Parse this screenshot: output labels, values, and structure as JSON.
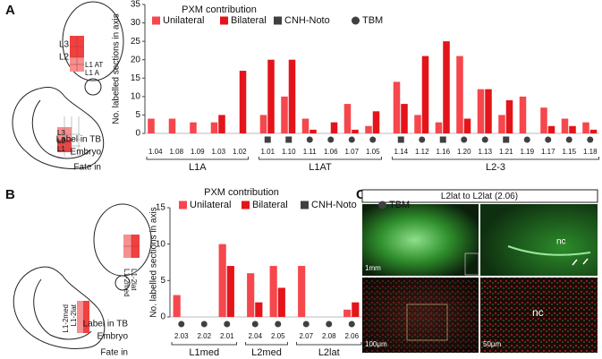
{
  "panels": {
    "a": "A",
    "b": "B",
    "c": "C"
  },
  "diagram_a": {
    "upper_labels": [
      "L3",
      "L2",
      "L1 AT",
      "L1 A"
    ],
    "lower_labels": [
      "L3",
      "L2",
      "L1"
    ]
  },
  "diagram_b": {
    "upper_labels": [
      "L1-2lat",
      "L1-2med"
    ],
    "lower_labels": [
      "L1-2lat",
      "L1-2med"
    ]
  },
  "panel_c": {
    "title": "L2lat to L2lat (2.06)",
    "scale_bars": [
      "1mm",
      "100μm",
      "50μm"
    ],
    "nc_labels": [
      "nc",
      "nc"
    ]
  },
  "chart_data": [
    {
      "type": "bar",
      "legend_title": "PXM contribution",
      "y_label": "No. labelled sections in axis",
      "row_labels": {
        "label_in_tb": "Label in TB",
        "embryo": "Embryo",
        "fate": "Fate in"
      },
      "categories": [
        "1.04",
        "1.08",
        "1.09",
        "1.03",
        "1.02",
        "1.01",
        "1.10",
        "1.11",
        "1.06",
        "1.07",
        "1.05",
        "1.14",
        "1.12",
        "1.16",
        "1.20",
        "1.13",
        "1.21",
        "1.19",
        "1.17",
        "1.15",
        "1.18"
      ],
      "fate": [
        "L1A",
        "L1A",
        "L1A",
        "L1A",
        "L1A",
        "L1AT",
        "L1AT",
        "L1AT",
        "L1AT",
        "L1AT",
        "L1AT",
        "L2-3",
        "L2-3",
        "L2-3",
        "L2-3",
        "L2-3",
        "L2-3",
        "L2-3",
        "L2-3",
        "L2-3",
        "L2-3"
      ],
      "label_in_tb": [
        null,
        null,
        null,
        null,
        null,
        "CNH-Noto",
        "CNH-Noto",
        "TBM",
        "TBM",
        "TBM",
        "TBM",
        "CNH-Noto",
        "TBM",
        "CNH-Noto",
        "TBM",
        "TBM",
        "CNH-Noto",
        "TBM",
        "TBM",
        "TBM",
        "TBM"
      ],
      "markers": [
        {
          "name": "CNH-Noto",
          "shape": "square",
          "color": "#404040"
        },
        {
          "name": "TBM",
          "shape": "circle",
          "color": "#404040"
        }
      ],
      "series": [
        {
          "name": "Unilateral",
          "color": "#f5474c",
          "values": [
            4,
            4,
            3,
            3,
            0,
            5,
            10,
            4,
            0,
            8,
            2,
            14,
            5,
            3,
            21,
            12,
            5,
            10,
            7,
            4,
            3
          ]
        },
        {
          "name": "Bilateral",
          "color": "#e4141b",
          "values": [
            0,
            0,
            0,
            5,
            17,
            20,
            20,
            1,
            3,
            1,
            6,
            8,
            21,
            25,
            4,
            12,
            9,
            0,
            2,
            2,
            1
          ]
        }
      ],
      "ylim": [
        0,
        35
      ],
      "yticks": [
        0,
        5,
        10,
        15,
        20,
        25,
        30,
        35
      ]
    },
    {
      "type": "bar",
      "legend_title": "PXM contribution",
      "y_label": "No. labelled sections in axis",
      "row_labels": {
        "label_in_tb": "Label in TB",
        "embryo": "Embryo",
        "fate": "Fate in"
      },
      "categories": [
        "2.03",
        "2.02",
        "2.01",
        "2.04",
        "2.05",
        "2.07",
        "2.08",
        "2.06"
      ],
      "fate": [
        "L1med",
        "L1med",
        "L1med",
        "L2med",
        "L2med",
        "L2lat",
        "L2lat",
        "L2lat"
      ],
      "label_in_tb": [
        "TBM",
        "TBM",
        "TBM",
        "TBM",
        "TBM",
        "TBM",
        "TBM",
        "TBM"
      ],
      "markers": [
        {
          "name": "CNH-Noto",
          "shape": "square",
          "color": "#404040"
        },
        {
          "name": "TBM",
          "shape": "circle",
          "color": "#404040"
        }
      ],
      "series": [
        {
          "name": "Unilateral",
          "color": "#f5474c",
          "values": [
            3,
            0,
            10,
            6,
            7,
            7,
            0,
            1
          ]
        },
        {
          "name": "Bilateral",
          "color": "#e4141b",
          "values": [
            0,
            0,
            7,
            2,
            4,
            0,
            0,
            2
          ]
        }
      ],
      "ylim": [
        0,
        15
      ],
      "yticks": [
        0,
        5,
        10,
        15
      ]
    }
  ]
}
